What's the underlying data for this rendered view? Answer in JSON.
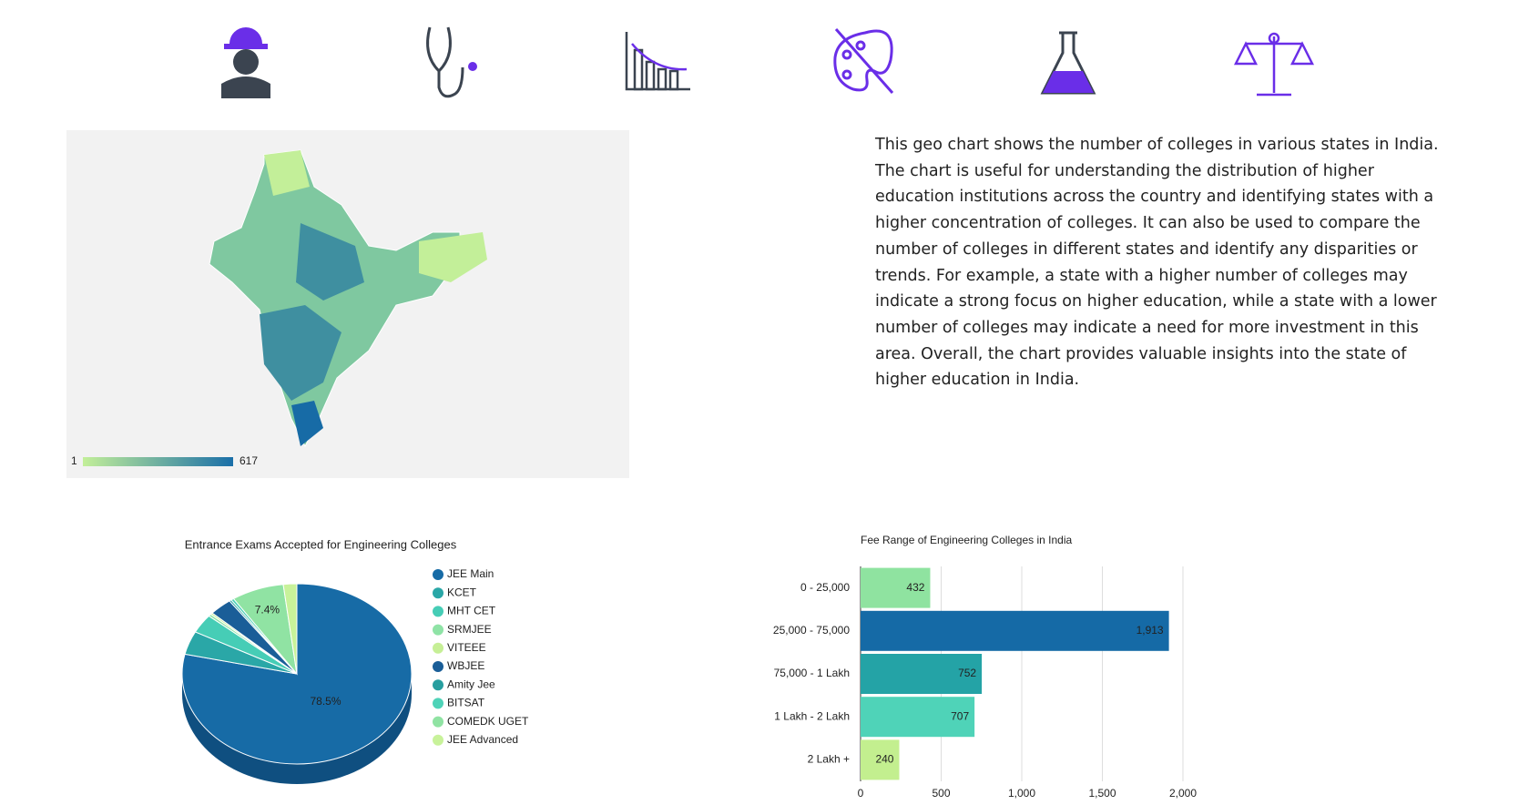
{
  "description": "This geo chart shows the number of colleges in various states in India. The chart is useful for understanding the distribution of higher education institutions across the country and identifying states with a higher concentration of colleges. It can also be used to compare the number of colleges in different states and identify any disparities or trends. For example, a state with a higher number of colleges may indicate a strong focus on higher education, while a state with a lower number of colleges may indicate a need for more investment in this area. Overall, the chart provides valuable insights into the state of higher education in India.",
  "chart_data": [
    {
      "type": "geo",
      "colorlim": [
        1,
        617
      ],
      "colors": [
        "#c3ef99",
        "#1a6fa8"
      ]
    },
    {
      "type": "pie",
      "title": "Entrance Exams Accepted for Engineering Colleges",
      "categories": [
        "JEE Main",
        "KCET",
        "MHT CET",
        "SRMJEE",
        "VITEEE",
        "WBJEE",
        "Amity Jee",
        "BITSAT",
        "COMEDK UGET",
        "JEE Advanced"
      ],
      "values": [
        78.5,
        4.2,
        3.4,
        0.4,
        0.3,
        3.2,
        0.3,
        0.4,
        7.4,
        1.9
      ],
      "value_labels": [
        "78.5%",
        null,
        null,
        null,
        null,
        null,
        null,
        null,
        "7.4%",
        null
      ],
      "colors": [
        "#176ba6",
        "#2aa7a7",
        "#46cdb6",
        "#8fe3a6",
        "#c6ef96",
        "#1a5e98",
        "#279e9f",
        "#4fd3b8",
        "#90e3a3",
        "#c8f29a"
      ]
    },
    {
      "type": "bar",
      "orientation": "horizontal",
      "title": "Fee Range of Engineering Colleges in India",
      "categories": [
        "0 - 25,000",
        "25,000 - 75,000",
        "75,000 - 1 Lakh",
        "1 Lakh - 2 Lakh",
        "2 Lakh +"
      ],
      "values": [
        432,
        1913,
        752,
        707,
        240
      ],
      "value_labels": [
        "432",
        "1,913",
        "752",
        "707",
        "240"
      ],
      "colors": [
        "#8fe3a0",
        "#156aa6",
        "#24a3a6",
        "#4fd3b8",
        "#c3ef8f"
      ],
      "xlim": [
        0,
        2000
      ],
      "xticks": [
        0,
        500,
        {
          "value": 1000,
          "label": "1,000"
        },
        {
          "value": 1500,
          "label": "1,500"
        },
        {
          "value": 2000,
          "label": "2,000"
        }
      ],
      "grid": true
    }
  ]
}
